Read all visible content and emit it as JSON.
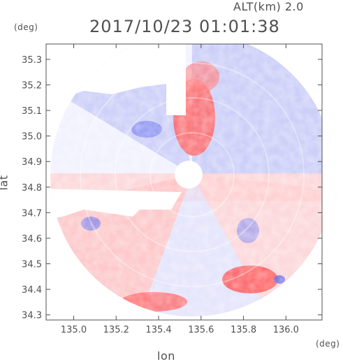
{
  "header": {
    "altitude_label": "ALT(km) 2.0",
    "timestamp": "2017/10/23 01:01:38",
    "lat_unit": "(deg)",
    "lon_unit": "(deg)",
    "ylabel": "lat",
    "xlabel": "lon"
  },
  "map": {
    "type": "radar-ppi",
    "lat_range": [
      34.28,
      35.36
    ],
    "lon_range": [
      134.87,
      136.17
    ],
    "lat_ticks": [
      "34.3",
      "34.4",
      "34.5",
      "34.6",
      "34.7",
      "34.8",
      "34.9",
      "35.0",
      "35.1",
      "35.2",
      "35.3"
    ],
    "lon_ticks": [
      "135.0",
      "135.2",
      "135.4",
      "135.6",
      "135.8",
      "136.0"
    ],
    "colors": {
      "approaching": "#7d85f0",
      "receding": "#ff5b5b",
      "neutral": "#f2f2ff",
      "axis": "#505050"
    },
    "radar_center": {
      "lon": 135.52,
      "lat": 34.83
    }
  }
}
